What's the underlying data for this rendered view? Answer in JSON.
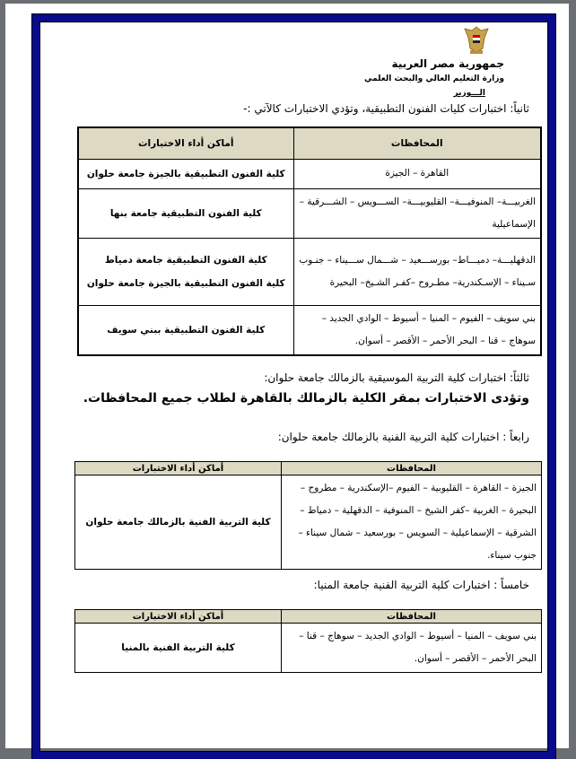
{
  "header": {
    "country": "جمهورية مصر العربية",
    "ministry": "وزارة التعليم العالي والبحث العلمي",
    "office": "الـــوزير",
    "emblem": "egypt-eagle-emblem"
  },
  "sections": [
    {
      "heading": "ثانياً: اختبارات كليات الفنون التطبيقية، وتؤدي الاختبارات كالآتي :-",
      "table": {
        "headers": [
          "المحافظات",
          "أماكن أداء الاختبارات"
        ],
        "rows": [
          {
            "governorates": "القاهرة – الجيزة",
            "location": "كلية الفنون التطبيقية بالجيزة جامعة حلوان"
          },
          {
            "governorates": "الغربيـــة– المنوفيـــة– القليوبيـــة– الســـويس – الشـــرقية – الإسماعيلية",
            "location": "كلية الفنون التطبيقية جامعة بنها"
          },
          {
            "governorates": "الدقهليـــة– دميـــاط– بورســـعيد – شـــمال ســـيناء – جنـوب سـيناء – الإسـكندرية– مطـروح –كفـر الشـيخ– البحيرة",
            "location": "كلية الفنون التطبيقية جامعة دمياط",
            "location2": "كلية الفنون التطبيقية بالجيزة جامعة حلوان"
          },
          {
            "governorates": "بني سويف – الفيوم – المنيا – أسيوط – الوادي الجديد – سوهاج – قنا – البحر الأحمر – الأقصر – أسوان.",
            "location": "كلية الفنون التطبيقية ببني سويف"
          }
        ]
      }
    },
    {
      "heading": "ثالثاً: اختبارات كلية التربية الموسيقية بالزمالك جامعة حلوان:",
      "note": "وتؤدى الاختبارات بمقر الكلية بالزمالك بالقاهرة لطلاب جميع المحافظات."
    },
    {
      "heading": "رابعاً : اختبارات كلية التربية الفنية بالزمالك جامعة حلوان:",
      "table": {
        "headers": [
          "المحافظات",
          "أماكن أداء الاختبارات"
        ],
        "rows": [
          {
            "governorates": "الجيزة – القاهرة – القليوبية – الفيوم –الإسكندرية – مطروح – البحيرة – الغربية –كفر الشيخ – المنوفية – الدقهلية – دمياط – الشرقية – الإسماعيلية – السويس – بورسعيد – شمال سيناء – جنوب سيناء.",
            "location": "كلية التربية الفنية بالزمالك جامعة حلوان"
          }
        ]
      }
    },
    {
      "heading": "خامساً : اختبارات كلية التربية الفنية جامعة المنيا:",
      "table": {
        "headers": [
          "المحافظات",
          "أماكن أداء الاختبارات"
        ],
        "rows": [
          {
            "governorates": "بني سويف – المنيا – أسيوط – الوادي الجديد – سوهاج – قنا – البحر الأحمر – الأقصر – أسوان.",
            "location": "كلية التربية الفنية بالمنيا"
          }
        ]
      }
    }
  ],
  "colors": {
    "page_border": "#0a0a8c",
    "table_header": "#ddd9c3"
  }
}
